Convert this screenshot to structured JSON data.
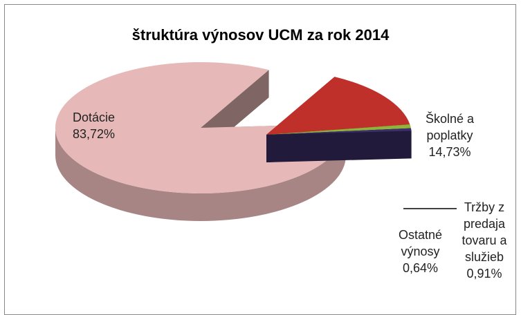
{
  "chart_data": {
    "type": "pie",
    "title": "štruktúra výnosov UCM za rok 2014",
    "categories": [
      "Dotácie",
      "Školné a poplatky",
      "Tržby z predaja tovaru a služieb",
      "Ostatné výnosy"
    ],
    "values": [
      83.72,
      14.73,
      0.91,
      0.64
    ],
    "value_labels": [
      "83,72%",
      "14,73%",
      "0,91%",
      "0,64%"
    ],
    "colors": [
      "#e6b9b8",
      "#c0302b",
      "#8fb43c",
      "#3c2f6b"
    ]
  }
}
